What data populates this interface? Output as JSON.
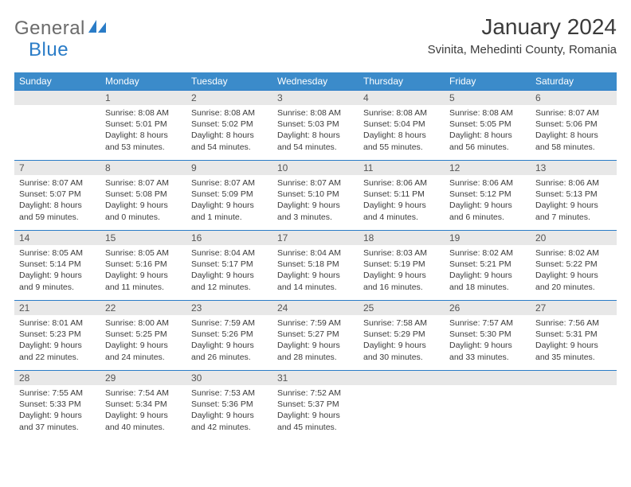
{
  "brand": {
    "name_a": "General",
    "name_b": "Blue"
  },
  "title": {
    "month": "January 2024",
    "location": "Svinita, Mehedinti County, Romania"
  },
  "daynames": [
    "Sunday",
    "Monday",
    "Tuesday",
    "Wednesday",
    "Thursday",
    "Friday",
    "Saturday"
  ],
  "colors": {
    "header_bg": "#3b8bca",
    "border": "#2a7cc7",
    "daynum_bg": "#e8e8e8",
    "text": "#3b3b3b"
  },
  "weeks": [
    [
      {
        "num": "",
        "sunrise": "",
        "sunset": "",
        "daylight1": "",
        "daylight2": ""
      },
      {
        "num": "1",
        "sunrise": "Sunrise: 8:08 AM",
        "sunset": "Sunset: 5:01 PM",
        "daylight1": "Daylight: 8 hours",
        "daylight2": "and 53 minutes."
      },
      {
        "num": "2",
        "sunrise": "Sunrise: 8:08 AM",
        "sunset": "Sunset: 5:02 PM",
        "daylight1": "Daylight: 8 hours",
        "daylight2": "and 54 minutes."
      },
      {
        "num": "3",
        "sunrise": "Sunrise: 8:08 AM",
        "sunset": "Sunset: 5:03 PM",
        "daylight1": "Daylight: 8 hours",
        "daylight2": "and 54 minutes."
      },
      {
        "num": "4",
        "sunrise": "Sunrise: 8:08 AM",
        "sunset": "Sunset: 5:04 PM",
        "daylight1": "Daylight: 8 hours",
        "daylight2": "and 55 minutes."
      },
      {
        "num": "5",
        "sunrise": "Sunrise: 8:08 AM",
        "sunset": "Sunset: 5:05 PM",
        "daylight1": "Daylight: 8 hours",
        "daylight2": "and 56 minutes."
      },
      {
        "num": "6",
        "sunrise": "Sunrise: 8:07 AM",
        "sunset": "Sunset: 5:06 PM",
        "daylight1": "Daylight: 8 hours",
        "daylight2": "and 58 minutes."
      }
    ],
    [
      {
        "num": "7",
        "sunrise": "Sunrise: 8:07 AM",
        "sunset": "Sunset: 5:07 PM",
        "daylight1": "Daylight: 8 hours",
        "daylight2": "and 59 minutes."
      },
      {
        "num": "8",
        "sunrise": "Sunrise: 8:07 AM",
        "sunset": "Sunset: 5:08 PM",
        "daylight1": "Daylight: 9 hours",
        "daylight2": "and 0 minutes."
      },
      {
        "num": "9",
        "sunrise": "Sunrise: 8:07 AM",
        "sunset": "Sunset: 5:09 PM",
        "daylight1": "Daylight: 9 hours",
        "daylight2": "and 1 minute."
      },
      {
        "num": "10",
        "sunrise": "Sunrise: 8:07 AM",
        "sunset": "Sunset: 5:10 PM",
        "daylight1": "Daylight: 9 hours",
        "daylight2": "and 3 minutes."
      },
      {
        "num": "11",
        "sunrise": "Sunrise: 8:06 AM",
        "sunset": "Sunset: 5:11 PM",
        "daylight1": "Daylight: 9 hours",
        "daylight2": "and 4 minutes."
      },
      {
        "num": "12",
        "sunrise": "Sunrise: 8:06 AM",
        "sunset": "Sunset: 5:12 PM",
        "daylight1": "Daylight: 9 hours",
        "daylight2": "and 6 minutes."
      },
      {
        "num": "13",
        "sunrise": "Sunrise: 8:06 AM",
        "sunset": "Sunset: 5:13 PM",
        "daylight1": "Daylight: 9 hours",
        "daylight2": "and 7 minutes."
      }
    ],
    [
      {
        "num": "14",
        "sunrise": "Sunrise: 8:05 AM",
        "sunset": "Sunset: 5:14 PM",
        "daylight1": "Daylight: 9 hours",
        "daylight2": "and 9 minutes."
      },
      {
        "num": "15",
        "sunrise": "Sunrise: 8:05 AM",
        "sunset": "Sunset: 5:16 PM",
        "daylight1": "Daylight: 9 hours",
        "daylight2": "and 11 minutes."
      },
      {
        "num": "16",
        "sunrise": "Sunrise: 8:04 AM",
        "sunset": "Sunset: 5:17 PM",
        "daylight1": "Daylight: 9 hours",
        "daylight2": "and 12 minutes."
      },
      {
        "num": "17",
        "sunrise": "Sunrise: 8:04 AM",
        "sunset": "Sunset: 5:18 PM",
        "daylight1": "Daylight: 9 hours",
        "daylight2": "and 14 minutes."
      },
      {
        "num": "18",
        "sunrise": "Sunrise: 8:03 AM",
        "sunset": "Sunset: 5:19 PM",
        "daylight1": "Daylight: 9 hours",
        "daylight2": "and 16 minutes."
      },
      {
        "num": "19",
        "sunrise": "Sunrise: 8:02 AM",
        "sunset": "Sunset: 5:21 PM",
        "daylight1": "Daylight: 9 hours",
        "daylight2": "and 18 minutes."
      },
      {
        "num": "20",
        "sunrise": "Sunrise: 8:02 AM",
        "sunset": "Sunset: 5:22 PM",
        "daylight1": "Daylight: 9 hours",
        "daylight2": "and 20 minutes."
      }
    ],
    [
      {
        "num": "21",
        "sunrise": "Sunrise: 8:01 AM",
        "sunset": "Sunset: 5:23 PM",
        "daylight1": "Daylight: 9 hours",
        "daylight2": "and 22 minutes."
      },
      {
        "num": "22",
        "sunrise": "Sunrise: 8:00 AM",
        "sunset": "Sunset: 5:25 PM",
        "daylight1": "Daylight: 9 hours",
        "daylight2": "and 24 minutes."
      },
      {
        "num": "23",
        "sunrise": "Sunrise: 7:59 AM",
        "sunset": "Sunset: 5:26 PM",
        "daylight1": "Daylight: 9 hours",
        "daylight2": "and 26 minutes."
      },
      {
        "num": "24",
        "sunrise": "Sunrise: 7:59 AM",
        "sunset": "Sunset: 5:27 PM",
        "daylight1": "Daylight: 9 hours",
        "daylight2": "and 28 minutes."
      },
      {
        "num": "25",
        "sunrise": "Sunrise: 7:58 AM",
        "sunset": "Sunset: 5:29 PM",
        "daylight1": "Daylight: 9 hours",
        "daylight2": "and 30 minutes."
      },
      {
        "num": "26",
        "sunrise": "Sunrise: 7:57 AM",
        "sunset": "Sunset: 5:30 PM",
        "daylight1": "Daylight: 9 hours",
        "daylight2": "and 33 minutes."
      },
      {
        "num": "27",
        "sunrise": "Sunrise: 7:56 AM",
        "sunset": "Sunset: 5:31 PM",
        "daylight1": "Daylight: 9 hours",
        "daylight2": "and 35 minutes."
      }
    ],
    [
      {
        "num": "28",
        "sunrise": "Sunrise: 7:55 AM",
        "sunset": "Sunset: 5:33 PM",
        "daylight1": "Daylight: 9 hours",
        "daylight2": "and 37 minutes."
      },
      {
        "num": "29",
        "sunrise": "Sunrise: 7:54 AM",
        "sunset": "Sunset: 5:34 PM",
        "daylight1": "Daylight: 9 hours",
        "daylight2": "and 40 minutes."
      },
      {
        "num": "30",
        "sunrise": "Sunrise: 7:53 AM",
        "sunset": "Sunset: 5:36 PM",
        "daylight1": "Daylight: 9 hours",
        "daylight2": "and 42 minutes."
      },
      {
        "num": "31",
        "sunrise": "Sunrise: 7:52 AM",
        "sunset": "Sunset: 5:37 PM",
        "daylight1": "Daylight: 9 hours",
        "daylight2": "and 45 minutes."
      },
      {
        "num": "",
        "sunrise": "",
        "sunset": "",
        "daylight1": "",
        "daylight2": ""
      },
      {
        "num": "",
        "sunrise": "",
        "sunset": "",
        "daylight1": "",
        "daylight2": ""
      },
      {
        "num": "",
        "sunrise": "",
        "sunset": "",
        "daylight1": "",
        "daylight2": ""
      }
    ]
  ]
}
